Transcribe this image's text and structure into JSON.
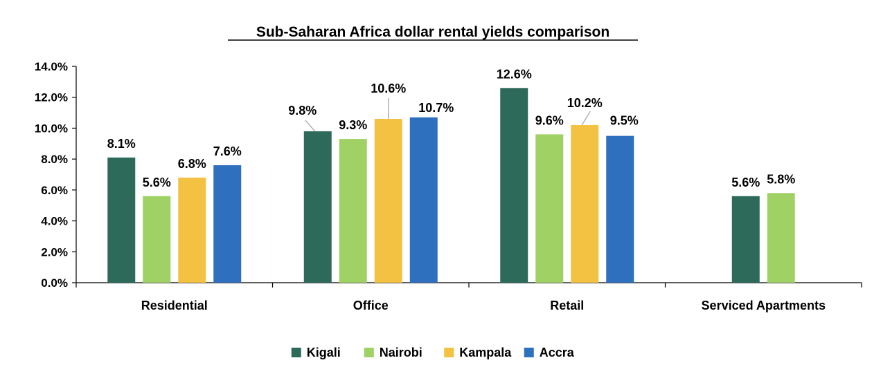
{
  "chart_data": {
    "type": "bar",
    "title": "Sub-Saharan Africa dollar rental yields comparison",
    "categories": [
      "Residential",
      "Office",
      "Retail",
      "Serviced Apartments"
    ],
    "series": [
      {
        "name": "Kigali",
        "color": "#2d6a5a",
        "values": [
          8.1,
          9.8,
          12.6,
          5.6
        ],
        "labels": [
          "8.1%",
          "9.8%",
          "12.6%",
          "5.6%"
        ]
      },
      {
        "name": "Nairobi",
        "color": "#9fd164",
        "values": [
          5.6,
          9.3,
          9.6,
          5.8
        ],
        "labels": [
          "5.6%",
          "9.3%",
          "9.6%",
          "5.8%"
        ]
      },
      {
        "name": "Kampala",
        "color": "#f4c242",
        "values": [
          6.8,
          10.6,
          10.2,
          null
        ],
        "labels": [
          "6.8%",
          "10.6%",
          "10.2%",
          ""
        ]
      },
      {
        "name": "Accra",
        "color": "#2e6fbe",
        "values": [
          7.6,
          10.7,
          9.5,
          null
        ],
        "labels": [
          "7.6%",
          "10.7%",
          "9.5%",
          ""
        ]
      }
    ],
    "ylim": [
      0,
      14
    ],
    "yticks": [
      "0.0%",
      "2.0%",
      "4.0%",
      "6.0%",
      "8.0%",
      "10.0%",
      "12.0%",
      "14.0%"
    ],
    "grid": false,
    "legend_position": "bottom-center"
  }
}
